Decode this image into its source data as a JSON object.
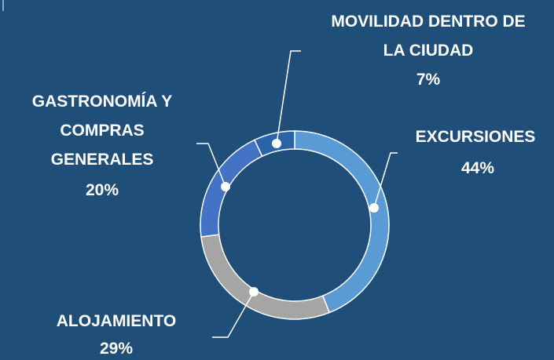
{
  "chart_data": {
    "type": "donut",
    "categories": [
      "EXCURSIONES",
      "ALOJAMIENTO",
      "GASTRONOMÍA Y COMPRAS GENERALES",
      "MOVILIDAD DENTRO DE LA CIUDAD"
    ],
    "values": [
      44,
      29,
      20,
      7
    ],
    "value_labels": [
      "44%",
      "29%",
      "20%",
      "7%"
    ],
    "colors": [
      "#5b9bd5",
      "#a5a5a5",
      "#4472c4",
      "#2a64a8"
    ]
  }
}
